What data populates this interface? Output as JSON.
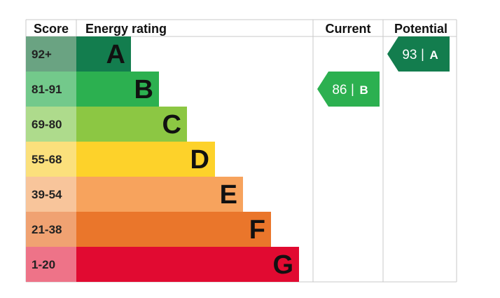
{
  "chart_data": {
    "type": "table",
    "headers": {
      "score": "Score",
      "rating": "Energy rating",
      "current": "Current",
      "potential": "Potential"
    },
    "bands": [
      {
        "score": "92+",
        "letter": "A",
        "score_color": "#6aa382",
        "bar_color": "#137d4e"
      },
      {
        "score": "81-91",
        "letter": "B",
        "score_color": "#73c98b",
        "bar_color": "#2cb050"
      },
      {
        "score": "69-80",
        "letter": "C",
        "score_color": "#aedb8c",
        "bar_color": "#8cc743"
      },
      {
        "score": "55-68",
        "letter": "D",
        "score_color": "#fbe07c",
        "bar_color": "#fdd22a"
      },
      {
        "score": "39-54",
        "letter": "E",
        "score_color": "#f8c59b",
        "bar_color": "#f7a35d"
      },
      {
        "score": "21-38",
        "letter": "F",
        "score_color": "#f0a272",
        "bar_color": "#ea762b"
      },
      {
        "score": "1-20",
        "letter": "G",
        "score_color": "#ee7388",
        "bar_color": "#e10a31"
      }
    ],
    "current": {
      "value": 86,
      "letter": "B",
      "separator": "|",
      "color": "#2cb050"
    },
    "potential": {
      "value": 93,
      "letter": "A",
      "separator": "|",
      "color": "#137d4e"
    }
  }
}
